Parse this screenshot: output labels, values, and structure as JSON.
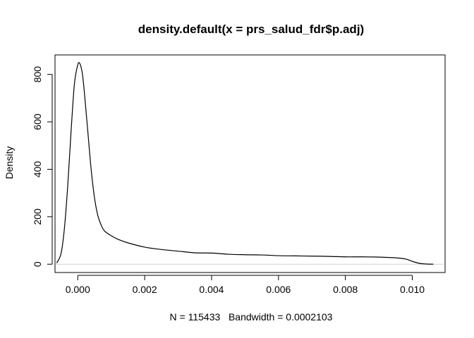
{
  "chart_data": {
    "type": "line",
    "title": "density.default(x = prs_salud_fdr$p.adj)",
    "xlabel": "N = 115433   Bandwidth = 0.0002103",
    "ylabel": "Density",
    "xlim": [
      -0.00068,
      0.01098
    ],
    "ylim": [
      -35,
      882
    ],
    "x_ticks": [
      0.0,
      0.002,
      0.004,
      0.006,
      0.008,
      0.01
    ],
    "x_tick_labels": [
      "0.000",
      "0.002",
      "0.004",
      "0.006",
      "0.008",
      "0.010"
    ],
    "y_ticks": [
      0,
      200,
      400,
      600,
      800
    ],
    "y_tick_labels": [
      "0",
      "200",
      "400",
      "600",
      "800"
    ],
    "grid": false,
    "zero_line": true,
    "series": [
      {
        "x": [
          -0.00063,
          -0.0005,
          -0.0004,
          -0.0003,
          -0.0002,
          -0.0001,
          0.0,
          5e-05,
          0.0001,
          0.00015,
          0.0002,
          0.0003,
          0.0004,
          0.0005,
          0.0006,
          0.0007,
          0.0008,
          0.001,
          0.0012,
          0.0015,
          0.002,
          0.0025,
          0.003,
          0.0035,
          0.004,
          0.0045,
          0.005,
          0.0055,
          0.006,
          0.0065,
          0.007,
          0.0075,
          0.008,
          0.0085,
          0.009,
          0.0095,
          0.0098,
          0.01,
          0.0102,
          0.0104,
          0.01063
        ],
        "y": [
          5,
          45,
          150,
          330,
          560,
          760,
          840,
          848,
          830,
          790,
          720,
          560,
          400,
          280,
          205,
          165,
          140,
          120,
          105,
          90,
          72,
          62,
          55,
          48,
          47,
          42,
          40,
          39,
          36,
          35,
          34,
          33,
          31,
          31,
          30,
          27,
          22,
          12,
          4,
          1,
          0
        ]
      }
    ]
  }
}
